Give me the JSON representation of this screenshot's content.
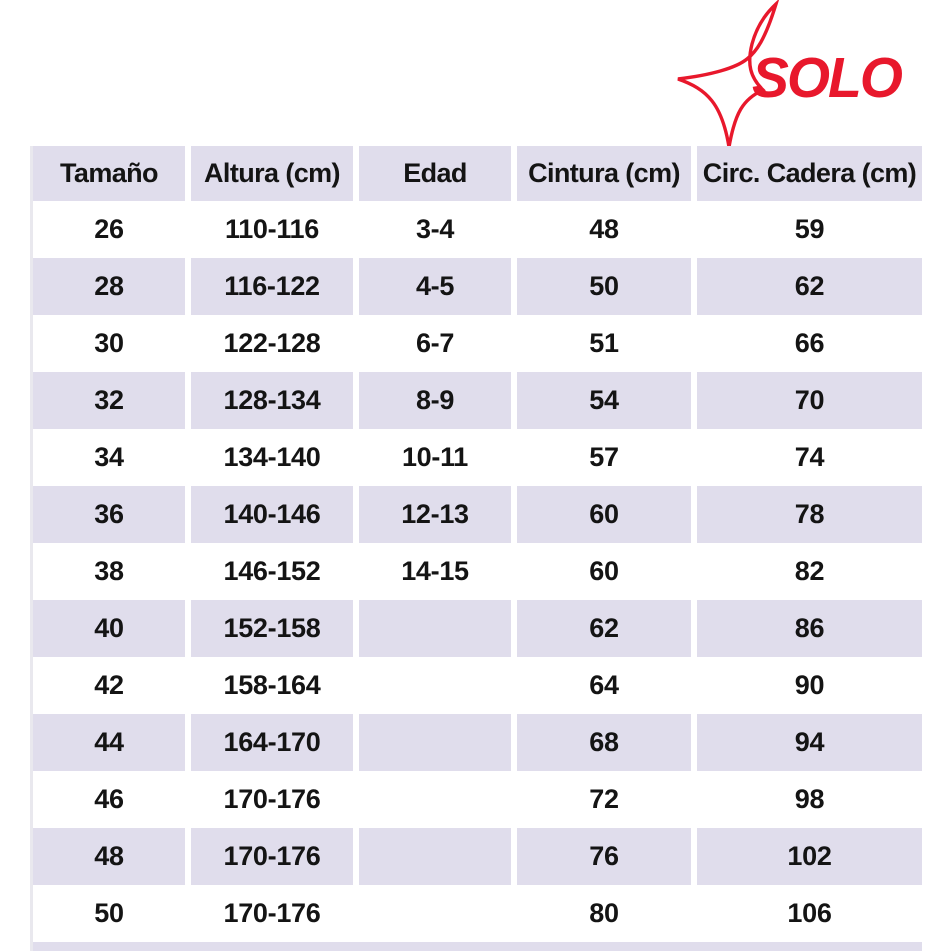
{
  "logo": {
    "text": "SOLO",
    "color": "#e8182c",
    "star_icon": "four-point-star-outline"
  },
  "table": {
    "headers": [
      "Tamaño",
      "Altura (cm)",
      "Edad",
      "Cintura (cm)",
      "Circ. Cadera (cm)"
    ],
    "rows": [
      [
        "26",
        "110-116",
        "3-4",
        "48",
        "59"
      ],
      [
        "28",
        "116-122",
        "4-5",
        "50",
        "62"
      ],
      [
        "30",
        "122-128",
        "6-7",
        "51",
        "66"
      ],
      [
        "32",
        "128-134",
        "8-9",
        "54",
        "70"
      ],
      [
        "34",
        "134-140",
        "10-11",
        "57",
        "74"
      ],
      [
        "36",
        "140-146",
        "12-13",
        "60",
        "78"
      ],
      [
        "38",
        "146-152",
        "14-15",
        "60",
        "82"
      ],
      [
        "40",
        "152-158",
        "",
        "62",
        "86"
      ],
      [
        "42",
        "158-164",
        "",
        "64",
        "90"
      ],
      [
        "44",
        "164-170",
        "",
        "68",
        "94"
      ],
      [
        "46",
        "170-176",
        "",
        "72",
        "98"
      ],
      [
        "48",
        "170-176",
        "",
        "76",
        "102"
      ],
      [
        "50",
        "170-176",
        "",
        "80",
        "106"
      ]
    ],
    "colors": {
      "band": "#e0ddec",
      "text": "#141414",
      "left_border": "#e9e8ee"
    }
  },
  "chart_data": {
    "type": "table",
    "title": "SOLO size chart",
    "columns": [
      "Tamaño",
      "Altura (cm)",
      "Edad",
      "Cintura (cm)",
      "Circ. Cadera (cm)"
    ],
    "rows": [
      [
        "26",
        "110-116",
        "3-4",
        "48",
        "59"
      ],
      [
        "28",
        "116-122",
        "4-5",
        "50",
        "62"
      ],
      [
        "30",
        "122-128",
        "6-7",
        "51",
        "66"
      ],
      [
        "32",
        "128-134",
        "8-9",
        "54",
        "70"
      ],
      [
        "34",
        "134-140",
        "10-11",
        "57",
        "74"
      ],
      [
        "36",
        "140-146",
        "12-13",
        "60",
        "78"
      ],
      [
        "38",
        "146-152",
        "14-15",
        "60",
        "82"
      ],
      [
        "40",
        "152-158",
        "",
        "62",
        "86"
      ],
      [
        "42",
        "158-164",
        "",
        "64",
        "90"
      ],
      [
        "44",
        "164-170",
        "",
        "68",
        "94"
      ],
      [
        "46",
        "170-176",
        "",
        "72",
        "98"
      ],
      [
        "48",
        "170-176",
        "",
        "76",
        "102"
      ],
      [
        "50",
        "170-176",
        "",
        "80",
        "106"
      ]
    ],
    "layout": "alternating row bands lavender #e0ddec on white, white gutters between columns, header row banded"
  }
}
